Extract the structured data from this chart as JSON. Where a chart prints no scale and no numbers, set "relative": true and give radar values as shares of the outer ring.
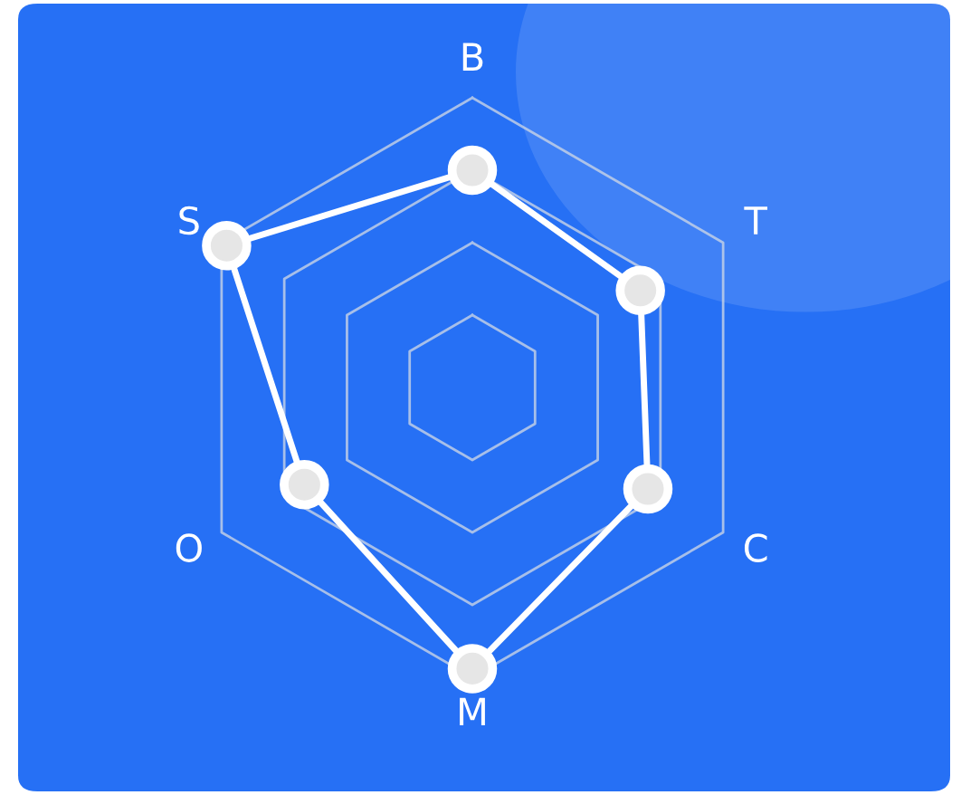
{
  "chart_data": {
    "type": "radar",
    "relative": true,
    "grid": true,
    "marker": "circle",
    "line_style": "solid",
    "categories": [
      "B",
      "T",
      "C",
      "M",
      "O",
      "S"
    ],
    "series": [
      {
        "color": "#ffffff",
        "values": [
          0.75,
          0.67,
          0.7,
          0.97,
          0.67,
          0.98
        ]
      }
    ]
  }
}
